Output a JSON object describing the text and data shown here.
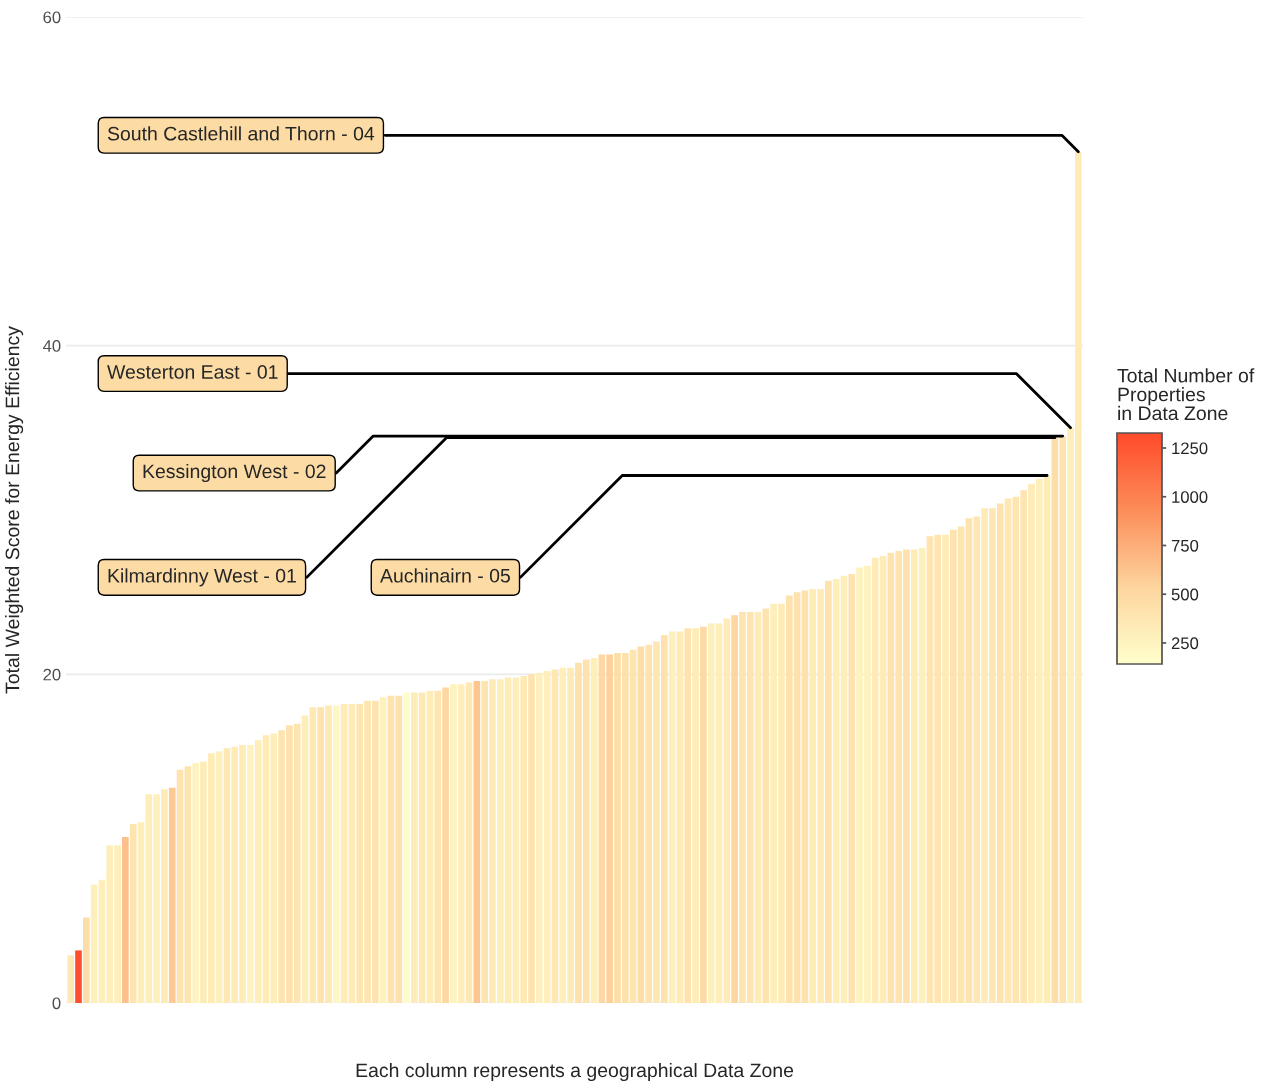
{
  "chart_data": {
    "type": "bar",
    "xlabel": "Each column represents a geographical Data Zone",
    "ylabel": "Total Weighted Score for Energy Efficiency",
    "clabel": "Total Number of\nProperties\nin Data Zone",
    "categories": [
      null,
      null,
      null,
      null,
      null,
      null,
      null,
      null,
      null,
      null,
      null,
      null,
      null,
      null,
      null,
      null,
      null,
      null,
      null,
      null,
      null,
      null,
      null,
      null,
      null,
      null,
      null,
      null,
      null,
      null,
      null,
      null,
      null,
      null,
      null,
      null,
      null,
      null,
      null,
      null,
      null,
      null,
      null,
      null,
      null,
      null,
      null,
      null,
      null,
      null,
      null,
      null,
      null,
      null,
      null,
      null,
      null,
      null,
      null,
      null,
      null,
      null,
      null,
      null,
      null,
      null,
      null,
      null,
      null,
      null,
      null,
      null,
      null,
      null,
      null,
      null,
      null,
      null,
      null,
      null,
      null,
      null,
      null,
      null,
      null,
      null,
      null,
      null,
      null,
      null,
      null,
      null,
      null,
      null,
      null,
      null,
      null,
      null,
      null,
      null,
      null,
      null,
      null,
      null,
      null,
      null,
      null,
      null,
      null,
      null,
      null,
      null,
      null,
      null,
      null,
      null,
      null,
      null,
      null,
      null,
      null,
      null,
      null,
      null,
      null,
      null,
      null,
      null,
      null,
      null
    ],
    "values": [
      2.9,
      3.2,
      5.2,
      7.2,
      7.5,
      9.6,
      9.6,
      10.1,
      10.9,
      11.0,
      12.7,
      12.7,
      13.0,
      13.1,
      14.2,
      14.4,
      14.6,
      14.7,
      15.2,
      15.3,
      15.5,
      15.6,
      15.7,
      15.7,
      16.0,
      16.3,
      16.4,
      16.6,
      16.9,
      17.0,
      17.5,
      18.0,
      18.0,
      18.1,
      18.1,
      18.2,
      18.2,
      18.2,
      18.4,
      18.4,
      18.6,
      18.7,
      18.7,
      18.9,
      18.9,
      18.9,
      19.0,
      19.0,
      19.2,
      19.4,
      19.4,
      19.5,
      19.6,
      19.6,
      19.7,
      19.7,
      19.8,
      19.8,
      19.9,
      20.0,
      20.1,
      20.2,
      20.3,
      20.4,
      20.4,
      20.7,
      20.9,
      21.0,
      21.2,
      21.2,
      21.3,
      21.3,
      21.5,
      21.7,
      21.8,
      22.0,
      22.4,
      22.6,
      22.6,
      22.8,
      22.8,
      22.9,
      23.1,
      23.1,
      23.4,
      23.6,
      23.8,
      23.8,
      23.8,
      24.0,
      24.3,
      24.3,
      24.8,
      25.0,
      25.1,
      25.2,
      25.2,
      25.7,
      25.8,
      26.0,
      26.1,
      26.5,
      26.6,
      27.1,
      27.2,
      27.4,
      27.5,
      27.6,
      27.6,
      27.7,
      28.4,
      28.5,
      28.5,
      28.8,
      29.0,
      29.5,
      29.6,
      30.1,
      30.1,
      30.4,
      30.7,
      30.8,
      31.2,
      31.6,
      31.9,
      32.1,
      34.4,
      34.5,
      35.0,
      51.8
    ],
    "cvalues": [
      350,
      1300,
      450,
      280,
      300,
      300,
      300,
      650,
      380,
      300,
      300,
      280,
      330,
      600,
      400,
      380,
      250,
      320,
      330,
      300,
      350,
      330,
      320,
      250,
      300,
      330,
      300,
      380,
      420,
      380,
      300,
      350,
      400,
      350,
      220,
      330,
      330,
      380,
      380,
      400,
      270,
      400,
      420,
      170,
      330,
      350,
      330,
      380,
      520,
      260,
      300,
      350,
      620,
      380,
      330,
      300,
      330,
      300,
      350,
      400,
      280,
      300,
      360,
      300,
      330,
      420,
      400,
      300,
      500,
      550,
      450,
      430,
      380,
      450,
      400,
      360,
      420,
      280,
      330,
      400,
      330,
      480,
      280,
      300,
      330,
      520,
      380,
      380,
      330,
      400,
      300,
      330,
      420,
      420,
      420,
      330,
      330,
      400,
      300,
      300,
      400,
      260,
      260,
      330,
      330,
      400,
      380,
      420,
      330,
      280,
      380,
      380,
      330,
      400,
      380,
      400,
      360,
      330,
      360,
      400,
      360,
      380,
      380,
      330,
      300,
      320,
      450,
      400,
      300,
      330
    ],
    "clim": [
      142,
      1327
    ],
    "cticks": [
      250,
      500,
      750,
      1000,
      1250
    ],
    "ylim": [
      0,
      60
    ],
    "yticks": [
      0,
      20,
      40,
      60
    ],
    "grid": "y",
    "legend": false,
    "annotations": [
      "South Castlehill and Thorn - 04",
      "Westerton East - 01",
      "Kessington West - 02",
      "Kilmardinny West - 01",
      "Auchinairn - 05"
    ]
  }
}
